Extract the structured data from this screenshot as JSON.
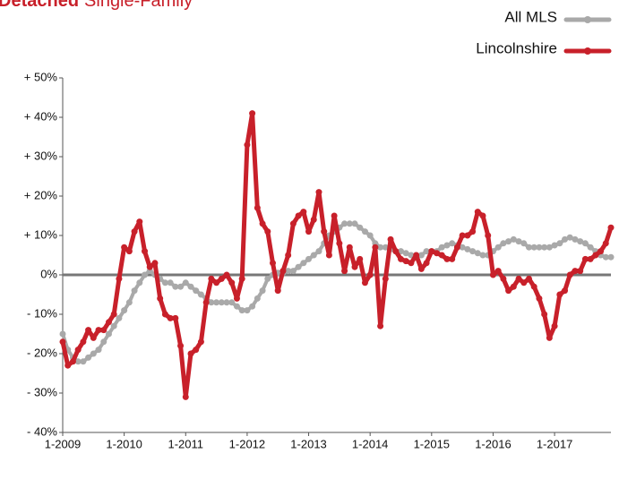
{
  "chart_data": {
    "type": "line",
    "title_emphasis": "Detached",
    "title": "Single-Family",
    "categories": [
      "1-2009",
      null,
      null,
      null,
      null,
      null,
      null,
      null,
      null,
      null,
      null,
      null,
      "1-2010",
      null,
      null,
      null,
      null,
      null,
      null,
      null,
      null,
      null,
      null,
      null,
      "1-2011",
      null,
      null,
      null,
      null,
      null,
      null,
      null,
      null,
      null,
      null,
      null,
      "1-2012",
      null,
      null,
      null,
      null,
      null,
      null,
      null,
      null,
      null,
      null,
      null,
      "1-2013",
      null,
      null,
      null,
      null,
      null,
      null,
      null,
      null,
      null,
      null,
      null,
      "1-2014",
      null,
      null,
      null,
      null,
      null,
      null,
      null,
      null,
      null,
      null,
      null,
      "1-2015",
      null,
      null,
      null,
      null,
      null,
      null,
      null,
      null,
      null,
      null,
      null,
      "1-2016",
      null,
      null,
      null,
      null,
      null,
      null,
      null,
      null,
      null,
      null,
      null,
      "1-2017",
      null,
      null,
      null,
      null,
      null,
      null,
      null,
      null,
      null,
      null,
      null
    ],
    "series": [
      {
        "name": "All MLS",
        "color": "#a9a9a9",
        "values": [
          -15,
          -19,
          -21,
          -22,
          -22,
          -21,
          -20,
          -19,
          -17,
          -15,
          -13,
          -11,
          -9,
          -7,
          -4,
          -2,
          0,
          1,
          0,
          -1,
          -2,
          -2,
          -3,
          -3,
          -2,
          -3,
          -4,
          -5,
          -6,
          -7,
          -7,
          -7,
          -7,
          -7,
          -8,
          -9,
          -9,
          -8,
          -6,
          -4,
          -1,
          0,
          0.5,
          0.5,
          1,
          1,
          2,
          3,
          4,
          5,
          6,
          8,
          10,
          11,
          12,
          13,
          13,
          13,
          12,
          11,
          10,
          8,
          7,
          7,
          6.5,
          6,
          6,
          5.5,
          5,
          5,
          5,
          6,
          6,
          6,
          7,
          7.5,
          8,
          7.5,
          7,
          6.5,
          6,
          5.5,
          5,
          5,
          6,
          7,
          8,
          8.5,
          9,
          8.5,
          8,
          7,
          7,
          7,
          7,
          7,
          7.5,
          8,
          9,
          9.5,
          9,
          8.5,
          8,
          7,
          6,
          5,
          4.5,
          4.5
        ]
      },
      {
        "name": "Lincolnshire",
        "color": "#c8202a",
        "values": [
          -17,
          -23,
          -22,
          -19,
          -17,
          -14,
          -16,
          -14,
          -14,
          -12,
          -10,
          -1,
          7,
          6,
          11,
          13.5,
          6,
          2,
          3,
          -6,
          -10,
          -11,
          -11,
          -18,
          -31,
          -20,
          -19,
          -17,
          -7,
          -1,
          -2,
          -1,
          0,
          -2,
          -6,
          -1,
          33,
          41,
          17,
          13,
          11,
          3,
          -4,
          1,
          5,
          13,
          15,
          16,
          11,
          14,
          21,
          11,
          5,
          15,
          8,
          1,
          7,
          2,
          4,
          -2,
          0,
          7,
          -13,
          -1,
          9,
          6,
          4,
          3.5,
          3,
          5,
          1.5,
          3,
          6,
          5.5,
          5,
          4,
          4,
          7,
          10,
          10,
          11,
          16,
          15,
          10,
          0,
          1,
          -1,
          -4,
          -3,
          -1,
          -2,
          -1,
          -3,
          -6,
          -10,
          -16,
          -13,
          -5,
          -4,
          0,
          1,
          1,
          4,
          4,
          5,
          6,
          8,
          12
        ]
      }
    ],
    "ylim": [
      -40,
      50
    ],
    "yticks": [
      {
        "value": -40,
        "label": "- 40%"
      },
      {
        "value": -30,
        "label": "- 30%"
      },
      {
        "value": -20,
        "label": "- 20%"
      },
      {
        "value": -10,
        "label": "- 10%"
      },
      {
        "value": 0,
        "label": "0%"
      },
      {
        "value": 10,
        "label": "+ 10%"
      },
      {
        "value": 20,
        "label": "+ 20%"
      },
      {
        "value": 30,
        "label": "+ 30%"
      },
      {
        "value": 40,
        "label": "+ 40%"
      },
      {
        "value": 50,
        "label": "+ 50%"
      }
    ],
    "grid": false,
    "zero_line": true,
    "legend": "top-right"
  }
}
